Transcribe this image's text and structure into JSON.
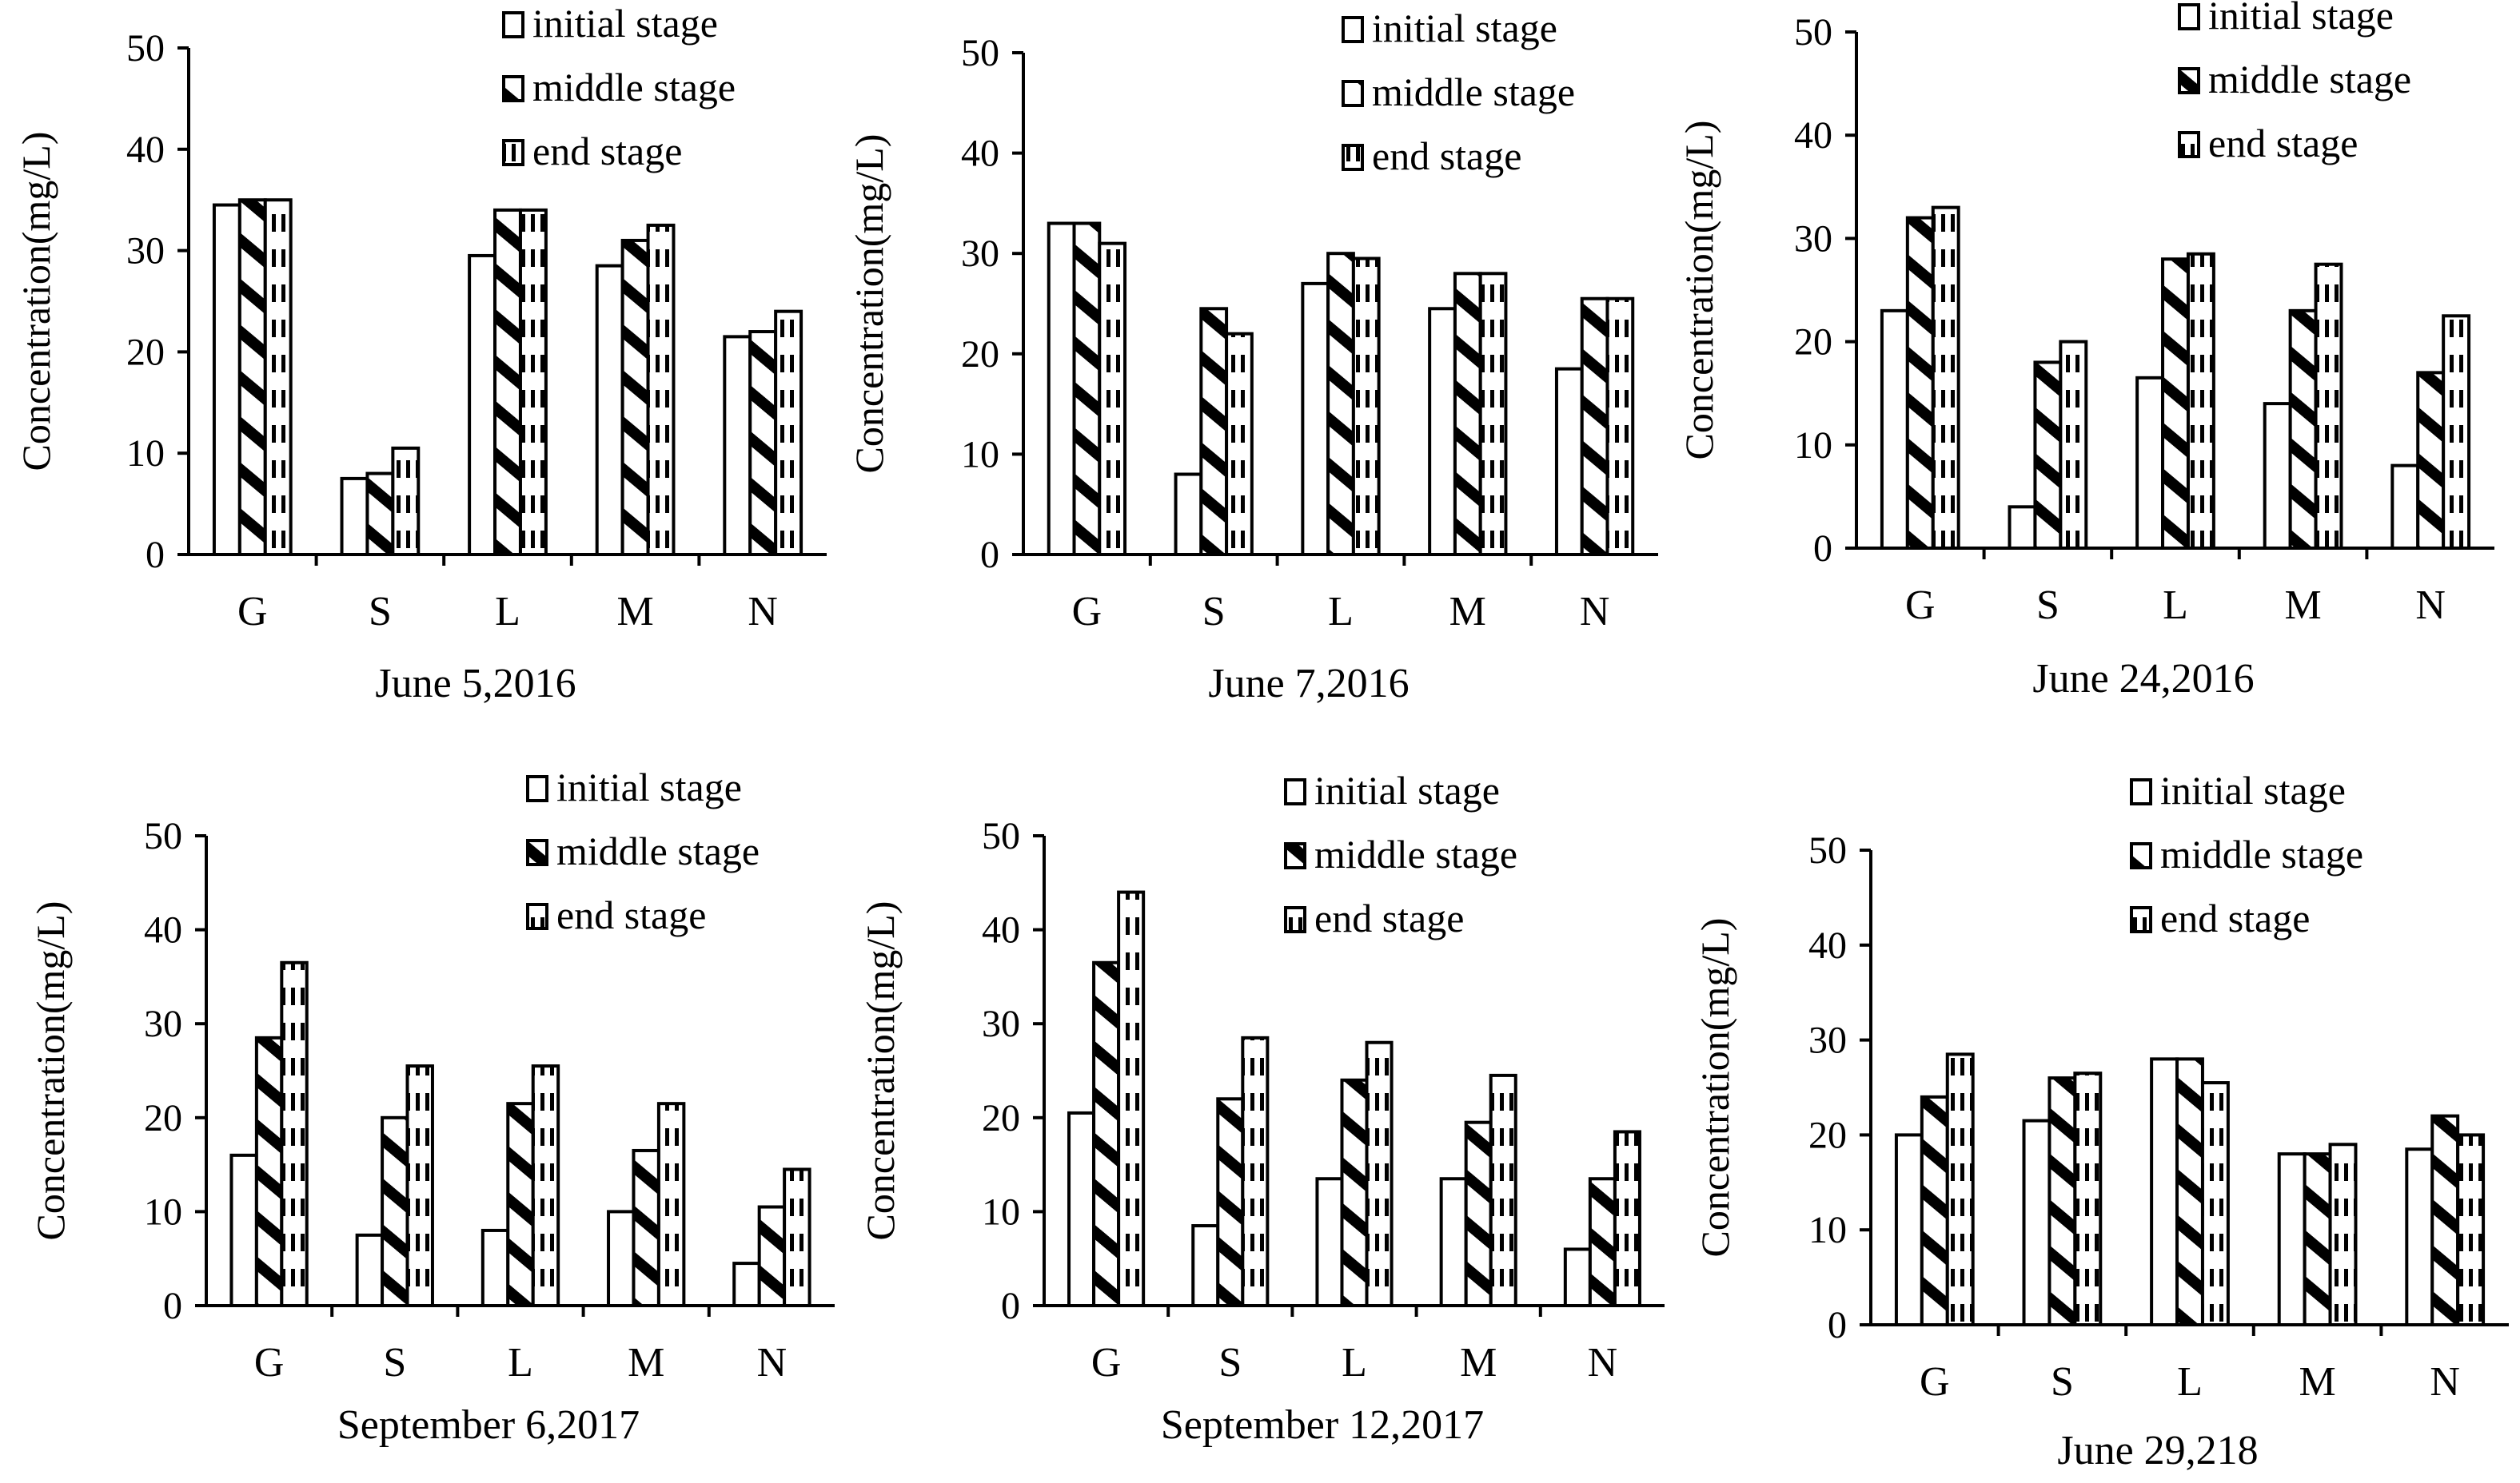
{
  "style": {
    "ink": "#000000",
    "paper": "#ffffff"
  },
  "legend_entries": [
    "initial stage",
    "middle stage",
    "end stage"
  ],
  "chart_data": [
    {
      "type": "bar",
      "title": "June 5,2016",
      "ylabel": "Concentration(mg/L)",
      "xlabel": "",
      "categories": [
        "G",
        "S",
        "L",
        "M",
        "N"
      ],
      "ylim": [
        0,
        50
      ],
      "yticks": [
        0,
        10,
        20,
        30,
        40,
        50
      ],
      "series": [
        {
          "name": "initial stage",
          "values": [
            34.5,
            7.5,
            29.5,
            28.5,
            21.5
          ]
        },
        {
          "name": "middle stage",
          "values": [
            35,
            8,
            34,
            31,
            22
          ]
        },
        {
          "name": "end stage",
          "values": [
            35,
            10.5,
            34,
            32.5,
            24
          ]
        }
      ],
      "legend": [
        "initial stage",
        "middle stage",
        "end stage"
      ]
    },
    {
      "type": "bar",
      "title": "June 7,2016",
      "ylabel": "Concentration(mg/L)",
      "xlabel": "",
      "categories": [
        "G",
        "S",
        "L",
        "M",
        "N"
      ],
      "ylim": [
        0,
        50
      ],
      "yticks": [
        0,
        10,
        20,
        30,
        40,
        50
      ],
      "series": [
        {
          "name": "initial stage",
          "values": [
            33,
            8,
            27,
            24.5,
            18.5
          ]
        },
        {
          "name": "middle stage",
          "values": [
            33,
            24.5,
            30,
            28,
            25.5
          ]
        },
        {
          "name": "end stage",
          "values": [
            31,
            22,
            29.5,
            28,
            25.5
          ]
        }
      ],
      "legend": [
        "initial stage",
        "middle stage",
        "end stage"
      ]
    },
    {
      "type": "bar",
      "title": "June 24,2016",
      "ylabel": "Concentration(mg/L)",
      "xlabel": "",
      "categories": [
        "G",
        "S",
        "L",
        "M",
        "N"
      ],
      "ylim": [
        0,
        50
      ],
      "yticks": [
        0,
        10,
        20,
        30,
        40,
        50
      ],
      "series": [
        {
          "name": "initial stage",
          "values": [
            23,
            4,
            16.5,
            14,
            8
          ]
        },
        {
          "name": "middle stage",
          "values": [
            32,
            18,
            28,
            23,
            17
          ]
        },
        {
          "name": "end stage",
          "values": [
            33,
            20,
            28.5,
            27.5,
            22.5
          ]
        }
      ],
      "legend": [
        "initial stage",
        "middle stage",
        "end stage"
      ]
    },
    {
      "type": "bar",
      "title": "September 6,2017",
      "ylabel": "Concentration(mg/L)",
      "xlabel": "",
      "categories": [
        "G",
        "S",
        "L",
        "M",
        "N"
      ],
      "ylim": [
        0,
        50
      ],
      "yticks": [
        0,
        10,
        20,
        30,
        40,
        50
      ],
      "series": [
        {
          "name": "initial stage",
          "values": [
            16,
            7.5,
            8,
            10,
            4.5
          ]
        },
        {
          "name": "middle stage",
          "values": [
            28.5,
            20,
            21.5,
            16.5,
            10.5
          ]
        },
        {
          "name": "end stage",
          "values": [
            36.5,
            25.5,
            25.5,
            21.5,
            14.5
          ]
        }
      ],
      "legend": [
        "initial stage",
        "middle stage",
        "end stage"
      ]
    },
    {
      "type": "bar",
      "title": "September 12,2017",
      "ylabel": "Concentration(mg/L)",
      "xlabel": "",
      "categories": [
        "G",
        "S",
        "L",
        "M",
        "N"
      ],
      "ylim": [
        0,
        50
      ],
      "yticks": [
        0,
        10,
        20,
        30,
        40,
        50
      ],
      "series": [
        {
          "name": "initial stage",
          "values": [
            20.5,
            8.5,
            13.5,
            13.5,
            6
          ]
        },
        {
          "name": "middle stage",
          "values": [
            36.5,
            22,
            24,
            19.5,
            13.5
          ]
        },
        {
          "name": "end stage",
          "values": [
            44,
            28.5,
            28,
            24.5,
            18.5
          ]
        }
      ],
      "legend": [
        "initial stage",
        "middle stage",
        "end stage"
      ]
    },
    {
      "type": "bar",
      "title": "June 29,218",
      "ylabel": "Concentration(mg/L)",
      "xlabel": "",
      "categories": [
        "G",
        "S",
        "L",
        "M",
        "N"
      ],
      "ylim": [
        0,
        50
      ],
      "yticks": [
        0,
        10,
        20,
        30,
        40,
        50
      ],
      "series": [
        {
          "name": "initial stage",
          "values": [
            20,
            21.5,
            28,
            18,
            18.5
          ]
        },
        {
          "name": "middle stage",
          "values": [
            24,
            26,
            28,
            18,
            22
          ]
        },
        {
          "name": "end stage",
          "values": [
            28.5,
            26.5,
            25.5,
            19,
            20
          ]
        }
      ],
      "legend": [
        "initial stage",
        "middle stage",
        "end stage"
      ]
    }
  ]
}
